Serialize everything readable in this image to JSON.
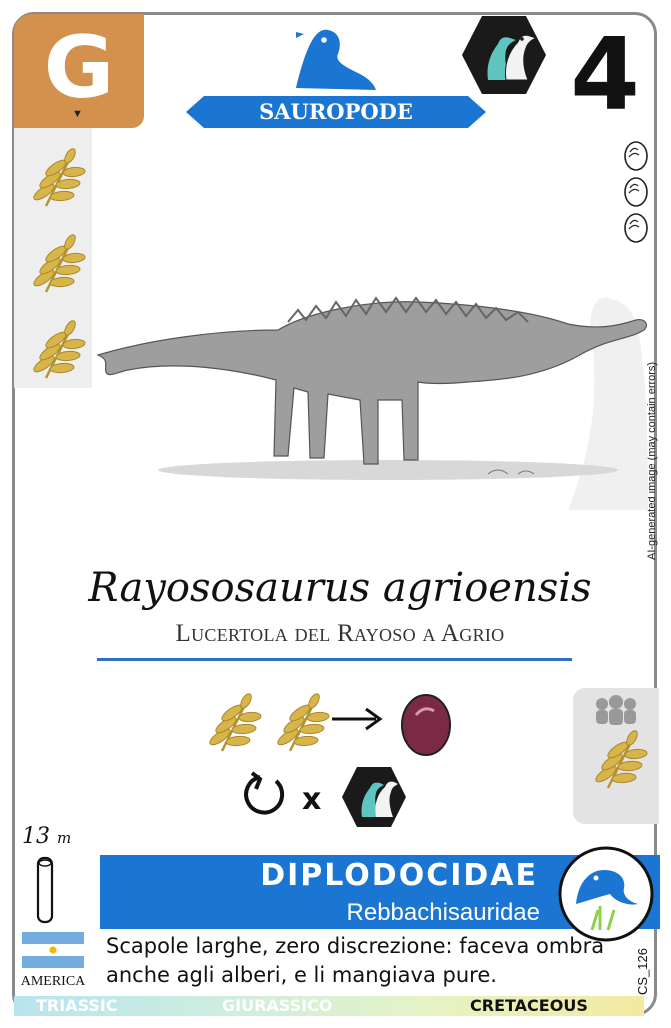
{
  "card": {
    "diet_letter": "G",
    "cost": "4",
    "clade": "SAUROPODE",
    "ai_note": "AI-generated image (may contain errors)",
    "species": "Rayososaurus agrioensis",
    "common_name": "Lucertola del Rayoso a Agrio",
    "length_value": "13",
    "length_unit": "m",
    "family": "DIPLODOCIDAE",
    "subfamily": "Rebbachisauridae",
    "region": "AMERICA",
    "flavor": "Scapole larghe, zero discrezione: faceva ombra anche agli alberi, e li mangiava pure.",
    "card_id": "CS_126",
    "periods": [
      "TRIASSIC",
      "GIURASSICO",
      "CRETACEOUS"
    ],
    "active_period": "CRETACEOUS",
    "egg_count": 3,
    "diet_icons_left": 3,
    "ability_cost_leaves": 2,
    "ability_multiplier": "x"
  },
  "colors": {
    "diet_badge": "#d4914e",
    "clade_blue": "#1b76d3",
    "leaf_gold": "#d8b54a",
    "egg": "#7a2a44",
    "hex_dark": "#1a1a1a",
    "hex_teal": "#5ec5c0"
  },
  "icons": {
    "diet": "leaf-icon",
    "egg": "egg-icon",
    "clade": "sauropod-head-icon",
    "hex": "duckbill-pair-icon",
    "cycle": "rotate-icon",
    "herd": "herd-icon",
    "length": "bone-icon",
    "flag": "argentina-flag-icon"
  }
}
